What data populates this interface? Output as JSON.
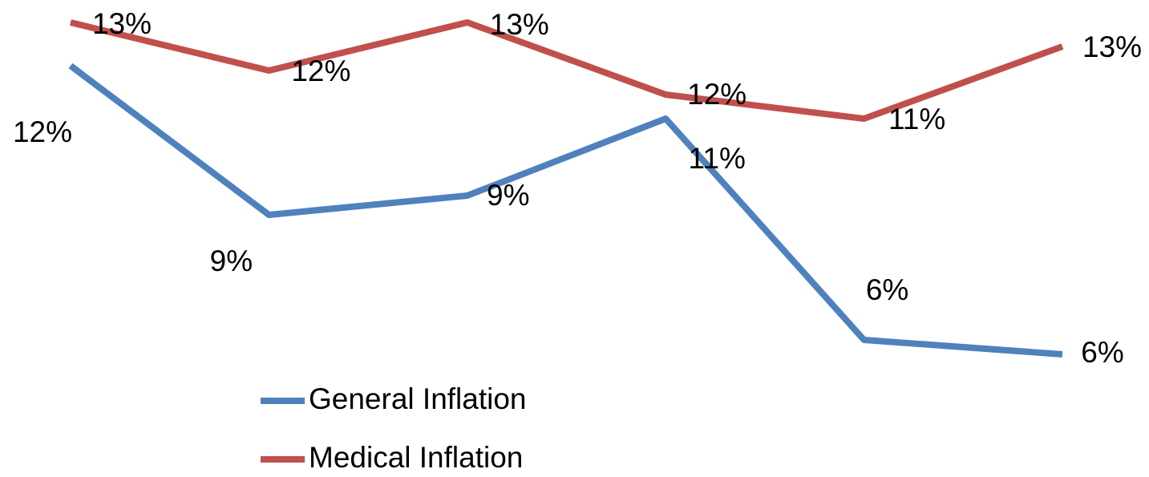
{
  "chart_data": {
    "type": "line",
    "categories": [
      null,
      null,
      null,
      null,
      null,
      null
    ],
    "series": [
      {
        "name": "General Inflation",
        "color": "#4f81bd",
        "values": [
          12.1,
          9.0,
          9.4,
          11.0,
          6.4,
          6.1
        ],
        "value_labels": [
          "12%",
          "9%",
          "9%",
          "11%",
          "6%",
          "6%"
        ]
      },
      {
        "name": "Medical Inflation",
        "color": "#c0504d",
        "values": [
          13.0,
          12.0,
          13.0,
          11.5,
          11.0,
          12.5
        ],
        "value_labels": [
          "13%",
          "12%",
          "13%",
          "12%",
          "11%",
          "13%"
        ]
      }
    ],
    "ylim": [
      3.5,
      13.5
    ],
    "grid": false,
    "legend": "bottom"
  }
}
